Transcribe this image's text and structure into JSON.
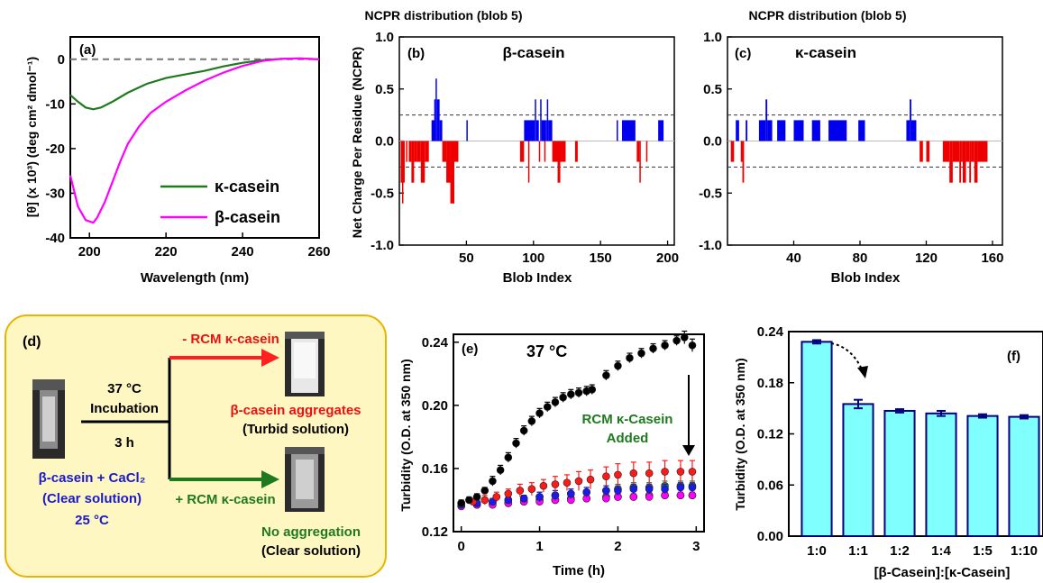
{
  "chart_data": [
    {
      "panel_label": "(a)",
      "type": "line",
      "xlabel": "Wavelength (nm)",
      "ylabel": "[θ] (x 10³) (deg cm² dmol⁻¹)",
      "xlim": [
        195,
        260
      ],
      "ylim": [
        -40,
        5
      ],
      "xticks": [
        200,
        220,
        240,
        260
      ],
      "yticks": [
        0,
        -10,
        -20,
        -30,
        -40
      ],
      "legend_position": "bottom-right",
      "series": [
        {
          "name": "κ-casein",
          "color": "#1f7a1f",
          "x": [
            195,
            197,
            199,
            201,
            203,
            206,
            210,
            215,
            220,
            225,
            230,
            235,
            240,
            245,
            250,
            255,
            260
          ],
          "y": [
            -8,
            -9.5,
            -10.8,
            -11.2,
            -10.8,
            -9.5,
            -7.5,
            -5.5,
            -4.2,
            -3.4,
            -2.6,
            -1.6,
            -0.8,
            -0.2,
            0.1,
            0.2,
            0.0
          ]
        },
        {
          "name": "β-casein",
          "color": "#ff00ff",
          "x": [
            195,
            197,
            199,
            201,
            202,
            204,
            206,
            208,
            210,
            213,
            216,
            220,
            225,
            230,
            235,
            240,
            245,
            250,
            255,
            260
          ],
          "y": [
            -26,
            -33,
            -36,
            -36.6,
            -35.5,
            -32,
            -27.5,
            -23,
            -19,
            -15,
            -12,
            -9.5,
            -7,
            -4.8,
            -3,
            -1.5,
            -0.4,
            0.1,
            0.2,
            0.0
          ]
        }
      ]
    },
    {
      "panel_label": "(b)",
      "type": "bar",
      "title": "NCPR distribution (blob 5)",
      "annotation": "β-casein",
      "xlabel": "Blob Index",
      "ylabel": "Net Charge Per Residue (NCPR)",
      "xlim": [
        0,
        205
      ],
      "ylim": [
        -1,
        1
      ],
      "xticks": [
        50,
        100,
        150,
        200
      ],
      "yticks": [
        1.0,
        0.5,
        0.0,
        -0.5,
        -1.0
      ],
      "ytick_labels": [
        "1.0",
        "0.5",
        "0.0",
        "-0.5",
        "-1.0"
      ],
      "reference_lines": [
        0.25,
        -0.25
      ],
      "positive_color": "#0000ee",
      "negative_color": "#ee0000",
      "segments": [
        [
          1,
          4,
          -0.4
        ],
        [
          2,
          3,
          -0.6
        ],
        [
          5,
          6,
          -0.2
        ],
        [
          7,
          9,
          -0.2
        ],
        [
          9,
          11,
          -0.4
        ],
        [
          11,
          13,
          -0.2
        ],
        [
          13,
          16,
          -0.2
        ],
        [
          16,
          19,
          -0.4
        ],
        [
          19,
          22,
          -0.2
        ],
        [
          24,
          27,
          0.2
        ],
        [
          26,
          27,
          0.4
        ],
        [
          27,
          28,
          0.6
        ],
        [
          28,
          30,
          0.4
        ],
        [
          30,
          32,
          0.2
        ],
        [
          32,
          35,
          -0.2
        ],
        [
          35,
          38,
          -0.4
        ],
        [
          38,
          41,
          -0.6
        ],
        [
          41,
          44,
          -0.2
        ],
        [
          50,
          51,
          0.2
        ],
        [
          90,
          93,
          -0.2
        ],
        [
          93,
          101,
          0.2
        ],
        [
          96,
          97,
          -0.4
        ],
        [
          101,
          102,
          0.4
        ],
        [
          102,
          104,
          0.2
        ],
        [
          104,
          105,
          -0.2
        ],
        [
          105,
          106,
          0.4
        ],
        [
          106,
          109,
          0.2
        ],
        [
          108,
          109,
          -0.2
        ],
        [
          109,
          110,
          0.2
        ],
        [
          110,
          111,
          0.4
        ],
        [
          111,
          114,
          0.2
        ],
        [
          114,
          121,
          -0.2
        ],
        [
          118,
          120,
          -0.4
        ],
        [
          121,
          124,
          -0.2
        ],
        [
          131,
          133,
          -0.2
        ],
        [
          162,
          163,
          0.2
        ],
        [
          166,
          176,
          0.2
        ],
        [
          177,
          179,
          -0.2
        ],
        [
          179,
          180,
          -0.4
        ],
        [
          184,
          185,
          -0.2
        ],
        [
          193,
          197,
          0.2
        ]
      ]
    },
    {
      "panel_label": "(c)",
      "type": "bar",
      "title": "NCPR distribution (blob 5)",
      "annotation": "κ-casein",
      "xlabel": "Blob Index",
      "ylim": [
        -1,
        1
      ],
      "xlim": [
        0,
        166
      ],
      "xticks": [
        40,
        80,
        120,
        160
      ],
      "yticks": [
        1.0,
        0.5,
        0.0,
        -0.5,
        -1.0
      ],
      "ytick_labels": [
        "1.0",
        "0.5",
        "0.0",
        "-0.5",
        "-1.0"
      ],
      "reference_lines": [
        0.25,
        -0.25
      ],
      "positive_color": "#0000ee",
      "negative_color": "#ee0000",
      "segments": [
        [
          2,
          4,
          -0.2
        ],
        [
          5,
          6,
          0.2
        ],
        [
          6,
          7,
          0.2
        ],
        [
          8,
          9,
          -0.2
        ],
        [
          9,
          10,
          -0.4
        ],
        [
          11,
          12,
          0.2
        ],
        [
          19,
          23,
          0.2
        ],
        [
          23,
          24,
          0.4
        ],
        [
          24,
          27,
          0.2
        ],
        [
          30,
          35,
          0.2
        ],
        [
          40,
          46,
          0.2
        ],
        [
          51,
          56,
          0.2
        ],
        [
          61,
          72,
          0.2
        ],
        [
          79,
          83,
          0.2
        ],
        [
          108,
          110,
          0.2
        ],
        [
          110,
          111,
          0.4
        ],
        [
          111,
          114,
          0.2
        ],
        [
          116,
          118,
          -0.2
        ],
        [
          120,
          122,
          -0.2
        ],
        [
          130,
          134,
          -0.2
        ],
        [
          134,
          136,
          -0.4
        ],
        [
          136,
          140,
          -0.2
        ],
        [
          140,
          141,
          -0.4
        ],
        [
          141,
          142,
          -0.2
        ],
        [
          142,
          144,
          -0.4
        ],
        [
          144,
          146,
          -0.2
        ],
        [
          146,
          147,
          -0.4
        ],
        [
          147,
          149,
          -0.2
        ],
        [
          149,
          151,
          -0.4
        ],
        [
          151,
          157,
          -0.2
        ]
      ]
    },
    {
      "panel_label": "(e)",
      "type": "scatter",
      "annotation_title": "37 °C",
      "annotation": [
        "RCM κ-Casein",
        "Added"
      ],
      "annotation_color": "#1f7a1f",
      "xlabel": "Time (h)",
      "ylabel": "Turbidity (O.D. at 350 nm)",
      "xlim": [
        -0.1,
        3.1
      ],
      "ylim": [
        0.12,
        0.245
      ],
      "xticks": [
        0,
        1,
        2,
        3
      ],
      "yticks": [
        0.12,
        0.16,
        0.2,
        0.24
      ],
      "ytick_labels": [
        "0.12",
        "0.16",
        "0.20",
        "0.24"
      ],
      "series": [
        {
          "color": "#000000",
          "x": [
            0,
            0.1,
            0.2,
            0.3,
            0.4,
            0.5,
            0.6,
            0.7,
            0.8,
            0.9,
            1.0,
            1.1,
            1.2,
            1.3,
            1.4,
            1.5,
            1.6,
            1.67,
            1.85,
            2.0,
            2.15,
            2.3,
            2.45,
            2.6,
            2.75,
            2.85,
            2.95
          ],
          "y": [
            0.138,
            0.14,
            0.142,
            0.146,
            0.152,
            0.159,
            0.167,
            0.176,
            0.184,
            0.19,
            0.195,
            0.199,
            0.202,
            0.205,
            0.207,
            0.208,
            0.209,
            0.21,
            0.219,
            0.225,
            0.23,
            0.233,
            0.236,
            0.238,
            0.241,
            0.243,
            0.238
          ],
          "errors": [
            0.002,
            0.002,
            0.002,
            0.002,
            0.003,
            0.003,
            0.003,
            0.003,
            0.003,
            0.003,
            0.003,
            0.003,
            0.003,
            0.003,
            0.003,
            0.003,
            0.003,
            0.003,
            0.003,
            0.003,
            0.003,
            0.003,
            0.003,
            0.003,
            0.003,
            0.004,
            0.004
          ]
        },
        {
          "color": "#ff1a1a",
          "x": [
            0,
            0.15,
            0.3,
            0.45,
            0.6,
            0.75,
            0.9,
            1.05,
            1.2,
            1.35,
            1.5,
            1.65,
            1.85,
            2.0,
            2.2,
            2.4,
            2.6,
            2.8,
            2.95
          ],
          "y": [
            0.138,
            0.139,
            0.14,
            0.142,
            0.144,
            0.146,
            0.147,
            0.149,
            0.15,
            0.151,
            0.152,
            0.153,
            0.155,
            0.156,
            0.157,
            0.157,
            0.158,
            0.158,
            0.158
          ],
          "errors": [
            0.002,
            0.002,
            0.003,
            0.003,
            0.003,
            0.004,
            0.004,
            0.004,
            0.005,
            0.005,
            0.006,
            0.006,
            0.006,
            0.007,
            0.007,
            0.007,
            0.007,
            0.007,
            0.007
          ]
        },
        {
          "color": "#1a1aee",
          "x": [
            0,
            0.2,
            0.4,
            0.6,
            0.8,
            1.0,
            1.2,
            1.4,
            1.6,
            1.85,
            2.0,
            2.2,
            2.4,
            2.6,
            2.8,
            2.95
          ],
          "y": [
            0.137,
            0.138,
            0.139,
            0.14,
            0.141,
            0.142,
            0.143,
            0.144,
            0.145,
            0.146,
            0.146,
            0.147,
            0.147,
            0.147,
            0.148,
            0.148
          ],
          "errors": [
            0.002,
            0.002,
            0.002,
            0.002,
            0.002,
            0.003,
            0.003,
            0.003,
            0.003,
            0.003,
            0.003,
            0.003,
            0.003,
            0.003,
            0.003,
            0.003
          ]
        },
        {
          "color": "#1f8a1f",
          "x": [
            0,
            0.2,
            0.4,
            0.6,
            0.8,
            1.0,
            1.2,
            1.4,
            1.6,
            1.85,
            2.0,
            2.2,
            2.4,
            2.6,
            2.8,
            2.95
          ],
          "y": [
            0.137,
            0.138,
            0.139,
            0.14,
            0.141,
            0.142,
            0.143,
            0.144,
            0.145,
            0.146,
            0.147,
            0.148,
            0.148,
            0.149,
            0.149,
            0.149
          ],
          "errors": [
            0.002,
            0.002,
            0.002,
            0.002,
            0.002,
            0.003,
            0.003,
            0.003,
            0.003,
            0.003,
            0.003,
            0.003,
            0.003,
            0.003,
            0.003,
            0.003
          ]
        },
        {
          "color": "#ff00ff",
          "x": [
            0,
            0.2,
            0.4,
            0.6,
            0.8,
            1.0,
            1.2,
            1.4,
            1.6,
            1.85,
            2.0,
            2.2,
            2.4,
            2.6,
            2.8,
            2.95
          ],
          "y": [
            0.136,
            0.137,
            0.137,
            0.138,
            0.139,
            0.139,
            0.14,
            0.14,
            0.141,
            0.141,
            0.142,
            0.142,
            0.142,
            0.143,
            0.143,
            0.143
          ],
          "errors": [
            0.002,
            0.002,
            0.002,
            0.002,
            0.002,
            0.002,
            0.002,
            0.002,
            0.002,
            0.002,
            0.002,
            0.002,
            0.002,
            0.002,
            0.002,
            0.002
          ]
        },
        {
          "color": "#2a8a8a",
          "x": [
            0,
            0.2,
            0.4,
            0.6,
            0.8,
            1.0,
            1.2,
            1.4,
            1.6,
            1.85,
            2.0,
            2.2,
            2.4,
            2.6,
            2.8,
            2.95
          ],
          "y": [
            0.137,
            0.137,
            0.138,
            0.138,
            0.139,
            0.14,
            0.14,
            0.141,
            0.141,
            0.142,
            0.142,
            0.142,
            0.143,
            0.143,
            0.143,
            0.143
          ],
          "errors": [
            0.002,
            0.002,
            0.002,
            0.002,
            0.002,
            0.002,
            0.002,
            0.002,
            0.002,
            0.002,
            0.002,
            0.002,
            0.002,
            0.002,
            0.002,
            0.002
          ]
        }
      ]
    },
    {
      "panel_label": "(f)",
      "type": "bar",
      "xlabel": "[β-Casein]:[κ-Casein]",
      "ylabel": "Turbidity (O.D. at 350 nm)",
      "ylim": [
        0,
        0.24
      ],
      "yticks": [
        0.0,
        0.06,
        0.12,
        0.18,
        0.24
      ],
      "ytick_labels": [
        "0.00",
        "0.06",
        "0.12",
        "0.18",
        "0.24"
      ],
      "categories": [
        "1:0",
        "1:1",
        "1:2",
        "1:4",
        "1:5",
        "1:10"
      ],
      "values": [
        0.228,
        0.155,
        0.147,
        0.144,
        0.141,
        0.14
      ],
      "errors": [
        0.002,
        0.005,
        0.002,
        0.003,
        0.002,
        0.002
      ],
      "bar_color": "#80ffff",
      "edge_color": "#000080"
    }
  ],
  "schematic": {
    "panel_label": "(d)",
    "start_conditions": "37 °C",
    "start_conditions_2": "Incubation",
    "duration": "3 h",
    "sample": "β-casein + CaCl₂",
    "sample_state": "(Clear solution)",
    "sample_temp": "25 °C",
    "branch_top": "- RCM κ-casein",
    "result_top": "β-casein aggregates",
    "result_top_state": "(Turbid solution)",
    "branch_bottom": "+ RCM κ-casein",
    "result_bottom": "No aggregation",
    "result_bottom_state": "(Clear solution)",
    "box_color": "#fff7c2",
    "box_border": "#e8b400"
  }
}
